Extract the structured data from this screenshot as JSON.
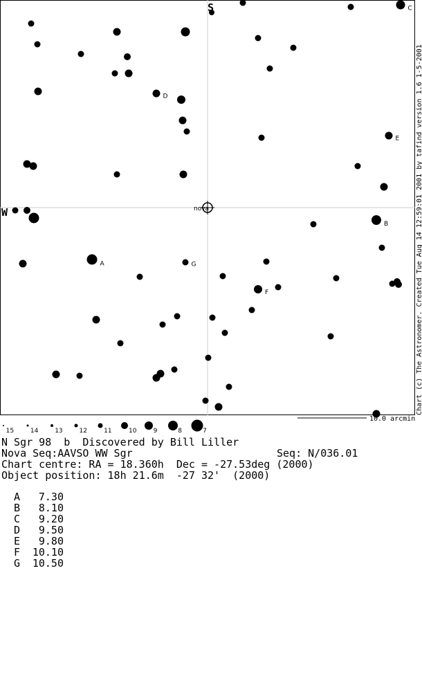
{
  "chart": {
    "north_label": "S",
    "west_label": "W",
    "object_label": "nova",
    "star_labels": [
      "C",
      "D",
      "E",
      "B",
      "A",
      "G",
      "F"
    ],
    "legend": [
      "15",
      "14",
      "13",
      "12",
      "11",
      "10",
      "9",
      "8",
      "7"
    ],
    "scale_label": "10.0 arcmin",
    "credit": "Chart (c) The Astronomer. Created Tue Aug 14 12:59:01 2001 by tafind version 1.6 1-5-2001"
  },
  "info": {
    "lines": [
      "N Sgr 98  b  Discovered by Bill Liller",
      "Nova Seq:AAVSO WW Sgr",
      "Chart centre: RA = 18.360h  Dec = -27.53deg (2000)",
      "Object position: 18h 21.6m  -27 32'  (2000)"
    ],
    "sequence": "Seq: N/036.01"
  },
  "comparison_table": {
    "rows": [
      [
        "A",
        "7.30"
      ],
      [
        "B",
        "8.10"
      ],
      [
        "C",
        "9.20"
      ],
      [
        "D",
        "9.50"
      ],
      [
        "E",
        "9.80"
      ],
      [
        "F",
        "10.10"
      ],
      [
        "G",
        "10.50"
      ]
    ]
  }
}
